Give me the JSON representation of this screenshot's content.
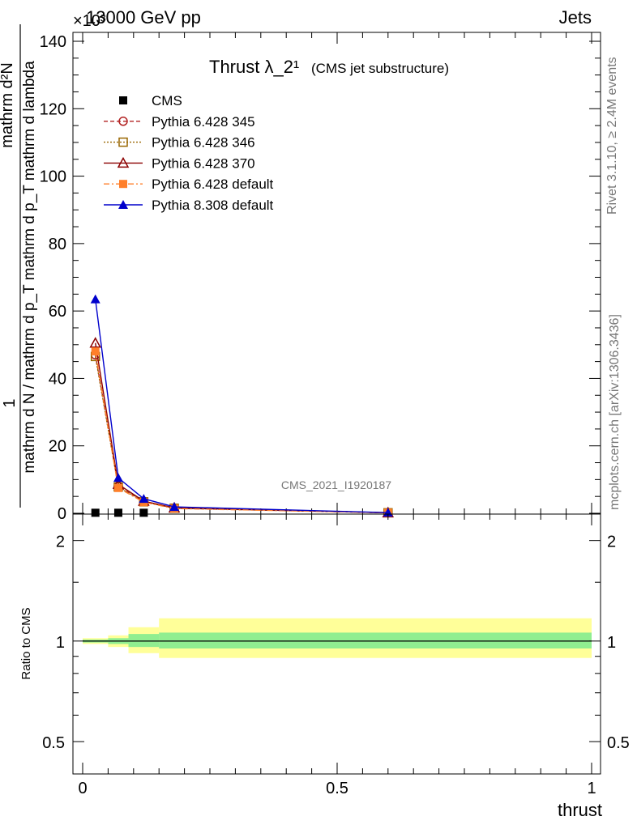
{
  "header": {
    "left": "13000 GeV pp",
    "right": "Jets",
    "exponent": "×10³"
  },
  "side_labels": {
    "rivet": "Rivet 3.1.10, ≥ 2.4M events",
    "mcplots": "mcplots.cern.ch [arXiv:1306.3436]"
  },
  "chart_data": [
    {
      "type": "line",
      "title": "Thrust λ_2¹",
      "subtitle": "(CMS jet substructure)",
      "watermark": "CMS_2021_I1920187",
      "ylabel_top": "1",
      "ylabel_num": "mathrm d²N",
      "ylabel_den": "mathrm d N / mathrm d p_T mathrm d p_T mathrm d lambda",
      "ylim": [
        0,
        140000
      ],
      "yticks": [
        0,
        20,
        40,
        60,
        80,
        100,
        120,
        140
      ],
      "xlim": [
        0,
        1
      ],
      "legend_position": "top-left",
      "series": [
        {
          "name": "CMS",
          "color": "#000000",
          "marker": "square-filled",
          "x": [
            0.025,
            0.07,
            0.12
          ],
          "y": [
            150,
            150,
            150
          ]
        },
        {
          "name": "Pythia 6.428 345",
          "color": "#b22222",
          "marker": "circle-open",
          "dash": "dashed",
          "x": [
            0.025,
            0.07,
            0.12,
            0.18,
            0.6
          ],
          "y": [
            47000,
            8000,
            3500,
            1500,
            150
          ]
        },
        {
          "name": "Pythia 6.428 346",
          "color": "#996600",
          "marker": "square-open",
          "dash": "dotted",
          "x": [
            0.025,
            0.07,
            0.12,
            0.18,
            0.6
          ],
          "y": [
            46500,
            7800,
            3400,
            1500,
            150
          ]
        },
        {
          "name": "Pythia 6.428 370",
          "color": "#8b0000",
          "marker": "triangle-open",
          "dash": "solid",
          "x": [
            0.025,
            0.07,
            0.12,
            0.18,
            0.6
          ],
          "y": [
            50500,
            8600,
            3600,
            1600,
            150
          ]
        },
        {
          "name": "Pythia 6.428 default",
          "color": "#ff7f2a",
          "marker": "square-filled",
          "dash": "dashdot",
          "x": [
            0.025,
            0.07,
            0.12,
            0.18,
            0.6
          ],
          "y": [
            48000,
            7500,
            3300,
            1400,
            150
          ]
        },
        {
          "name": "Pythia 8.308 default",
          "color": "#0000cc",
          "marker": "triangle-filled",
          "dash": "solid",
          "x": [
            0.025,
            0.07,
            0.12,
            0.18,
            0.6
          ],
          "y": [
            63500,
            10500,
            4300,
            1900,
            200
          ]
        }
      ]
    },
    {
      "type": "area",
      "ylabel": "Ratio to CMS",
      "xlabel": "thrust",
      "ylim": [
        0.4,
        2.4
      ],
      "yscale": "log",
      "yticks": [
        "0.5",
        "1",
        "2"
      ],
      "xticks": [
        "0",
        "0.5",
        "1"
      ],
      "xlim": [
        0,
        1
      ],
      "reference": 1,
      "bands": [
        {
          "x0": 0.0,
          "x1": 0.05,
          "inner": [
            0.99,
            1.01
          ],
          "outer": [
            0.98,
            1.02
          ]
        },
        {
          "x0": 0.05,
          "x1": 0.09,
          "inner": [
            0.98,
            1.02
          ],
          "outer": [
            0.96,
            1.04
          ]
        },
        {
          "x0": 0.09,
          "x1": 0.15,
          "inner": [
            0.96,
            1.05
          ],
          "outer": [
            0.92,
            1.1
          ]
        },
        {
          "x0": 0.15,
          "x1": 1.0,
          "inner": [
            0.95,
            1.06
          ],
          "outer": [
            0.89,
            1.17
          ]
        }
      ],
      "inner_color": "#90ee90",
      "outer_color": "#ffff99"
    }
  ]
}
